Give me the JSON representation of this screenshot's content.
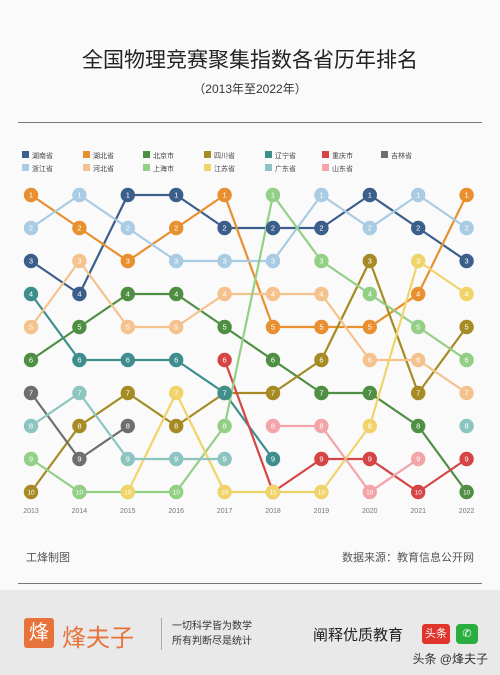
{
  "header": {
    "title": "全国物理竞赛聚集指数各省历年排名",
    "subtitle": "（2013年至2022年）"
  },
  "credits": {
    "maker": "工烽制图",
    "source": "数据来源：教育信息公开网"
  },
  "footer": {
    "logo_char": "烽",
    "logo_name": "烽夫子",
    "slogan_line1": "一切科学皆为数学",
    "slogan_line2": "所有判断尽是统计",
    "tagline": "阐释优质教育",
    "toutiao": "头条",
    "wechat_icon": "wechat-icon",
    "watermark": "头条 @烽夫子"
  },
  "chart_data": {
    "type": "line",
    "title": "全国物理竞赛聚集指数各省历年排名",
    "subtitle": "（2013年至2022年）",
    "x": [
      "2013",
      "2014",
      "2015",
      "2016",
      "2017",
      "2018",
      "2019",
      "2020",
      "2021",
      "2022"
    ],
    "y_ticks": [
      1,
      2,
      3,
      4,
      5,
      6,
      7,
      8,
      9,
      10
    ],
    "y_inverted": true,
    "ylim": [
      1,
      10
    ],
    "grid": false,
    "legend_position": "top",
    "series": [
      {
        "name": "湖南省",
        "color": "#3c5e8b",
        "values": [
          3,
          4,
          1,
          1,
          2,
          2,
          2,
          1,
          2,
          3
        ]
      },
      {
        "name": "湖北省",
        "color": "#e8902f",
        "values": [
          1,
          2,
          3,
          2,
          1,
          5,
          5,
          5,
          4,
          1
        ]
      },
      {
        "name": "北京市",
        "color": "#4f8f44",
        "values": [
          6,
          5,
          4,
          4,
          5,
          6,
          7,
          7,
          8,
          10
        ]
      },
      {
        "name": "四川省",
        "color": "#a68a24",
        "values": [
          10,
          8,
          7,
          8,
          7,
          7,
          6,
          3,
          7,
          5
        ]
      },
      {
        "name": "辽宁省",
        "color": "#3f8e8e",
        "values": [
          4,
          6,
          6,
          6,
          7,
          9,
          null,
          null,
          null,
          null
        ]
      },
      {
        "name": "重庆市",
        "color": "#d64545",
        "values": [
          null,
          null,
          null,
          null,
          6,
          10,
          9,
          9,
          10,
          9
        ]
      },
      {
        "name": "吉林省",
        "color": "#6e6e6e",
        "values": [
          7,
          9,
          8,
          null,
          null,
          null,
          null,
          null,
          null,
          null
        ]
      },
      {
        "name": "浙江省",
        "color": "#a9cbe3",
        "values": [
          2,
          1,
          2,
          3,
          3,
          3,
          1,
          2,
          1,
          2
        ]
      },
      {
        "name": "河北省",
        "color": "#f4c28c",
        "values": [
          5,
          3,
          5,
          5,
          4,
          4,
          4,
          6,
          6,
          7
        ]
      },
      {
        "name": "上海市",
        "color": "#93cf85",
        "values": [
          9,
          10,
          10,
          10,
          8,
          1,
          3,
          4,
          5,
          6
        ]
      },
      {
        "name": "江苏省",
        "color": "#f0d46a",
        "values": [
          null,
          null,
          10,
          7,
          10,
          10,
          10,
          8,
          3,
          4
        ]
      },
      {
        "name": "广东省",
        "color": "#8cc5c0",
        "values": [
          8,
          7,
          9,
          9,
          9,
          null,
          null,
          null,
          null,
          8
        ]
      },
      {
        "name": "山东省",
        "color": "#f2a4a8",
        "values": [
          null,
          null,
          null,
          null,
          null,
          8,
          8,
          10,
          9,
          null
        ]
      }
    ]
  }
}
